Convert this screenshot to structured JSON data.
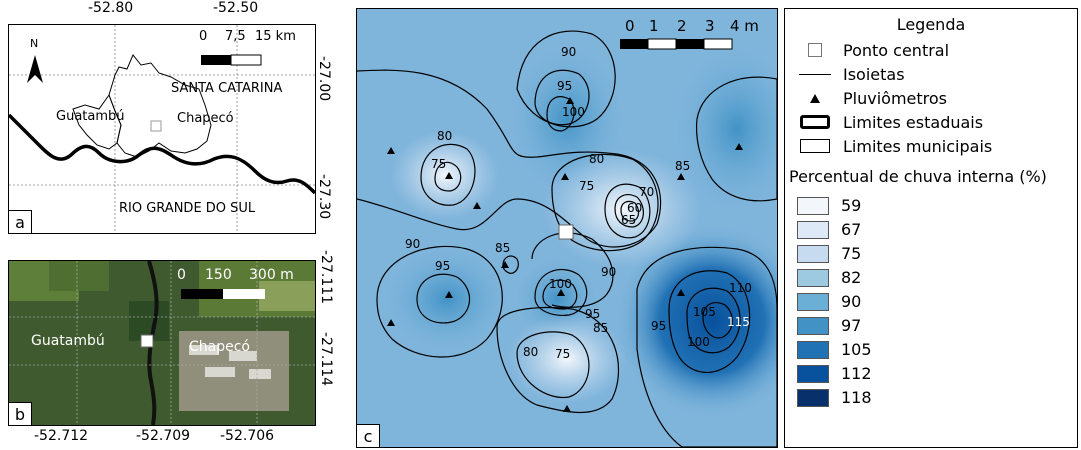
{
  "panel_a": {
    "label": "a",
    "top_lon": [
      "-52.80",
      "-52.50"
    ],
    "right_lat": [
      "-27.00",
      "-27.30"
    ],
    "scale_ticks": [
      "0",
      "7,5",
      "15 km"
    ],
    "north": "N",
    "place_santa_catarina": "SANTA CATARINA",
    "place_rio_grande": "RIO GRANDE DO SUL",
    "place_guatambu": "Guatambú",
    "place_chapeco": "Chapecó"
  },
  "panel_b": {
    "label": "b",
    "bottom_lon": [
      "-52.712",
      "-52.709",
      "-52.706"
    ],
    "right_lat": [
      "-27.111",
      "-27.114"
    ],
    "scale_ticks": [
      "0",
      "150",
      "300 m"
    ],
    "place_guatambu": "Guatambú",
    "place_chapeco": "Chapecó"
  },
  "panel_c": {
    "label": "c",
    "scale_ticks": [
      "0",
      "1",
      "2",
      "3",
      "4 m"
    ],
    "contour_labels": [
      "90",
      "95",
      "100",
      "80",
      "75",
      "80",
      "75",
      "70",
      "60",
      "65",
      "85",
      "90",
      "95",
      "85",
      "100",
      "95",
      "90",
      "85",
      "80",
      "75",
      "110",
      "105",
      "100",
      "95",
      "115"
    ]
  },
  "legend": {
    "title": "Legenda",
    "items": [
      {
        "label": "Ponto central",
        "icon": "square-icon"
      },
      {
        "label": "Isoietas",
        "icon": "line-icon"
      },
      {
        "label": "Pluviômetros",
        "icon": "triangle-icon"
      },
      {
        "label": "Limites estaduais",
        "icon": "thick-box-icon"
      },
      {
        "label": "Limites municipais",
        "icon": "thin-box-icon"
      }
    ],
    "scale_title": "Percentual de chuva interna (%)",
    "scale": [
      {
        "value": "59",
        "color": "#f3f7fc"
      },
      {
        "value": "67",
        "color": "#dde9f6"
      },
      {
        "value": "75",
        "color": "#c6dbef"
      },
      {
        "value": "82",
        "color": "#9ecae1"
      },
      {
        "value": "90",
        "color": "#6baed6"
      },
      {
        "value": "97",
        "color": "#4292c6"
      },
      {
        "value": "105",
        "color": "#2171b5"
      },
      {
        "value": "112",
        "color": "#08519c"
      },
      {
        "value": "118",
        "color": "#08306b"
      }
    ]
  }
}
